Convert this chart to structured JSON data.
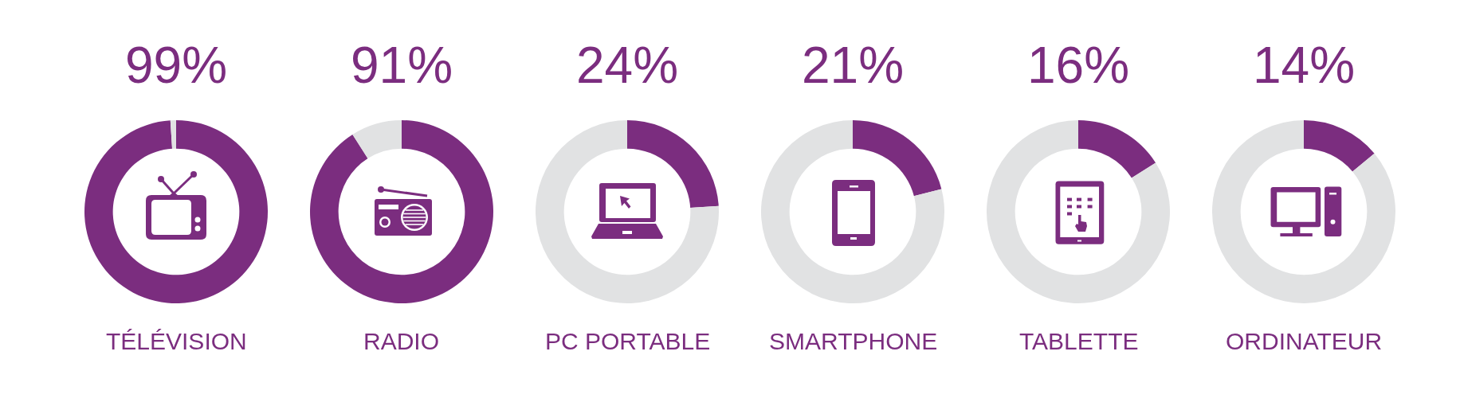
{
  "chart_data": [
    {
      "type": "donut",
      "title": "TÉLÉVISION",
      "categories": [
        null,
        null
      ],
      "values": [
        99,
        1
      ],
      "colors": [
        "#7b2d7f",
        "#e1e2e3"
      ],
      "value_labels": [
        "99%",
        null
      ]
    },
    {
      "type": "donut",
      "title": "RADIO",
      "categories": [
        null,
        null
      ],
      "values": [
        91,
        9
      ],
      "colors": [
        "#7b2d7f",
        "#e1e2e3"
      ],
      "value_labels": [
        "91%",
        null
      ]
    },
    {
      "type": "donut",
      "title": "PC PORTABLE",
      "categories": [
        null,
        null
      ],
      "values": [
        24,
        76
      ],
      "colors": [
        "#7b2d7f",
        "#e1e2e3"
      ],
      "value_labels": [
        "24%",
        null
      ]
    },
    {
      "type": "donut",
      "title": "SMARTPHONE",
      "categories": [
        null,
        null
      ],
      "values": [
        21,
        79
      ],
      "colors": [
        "#7b2d7f",
        "#e1e2e3"
      ],
      "value_labels": [
        "21%",
        null
      ]
    },
    {
      "type": "donut",
      "title": "TABLETTE",
      "categories": [
        null,
        null
      ],
      "values": [
        16,
        84
      ],
      "colors": [
        "#7b2d7f",
        "#e1e2e3"
      ],
      "value_labels": [
        "16%",
        null
      ]
    },
    {
      "type": "donut",
      "title": "ORDINATEUR",
      "categories": [
        null,
        null
      ],
      "values": [
        14,
        86
      ],
      "colors": [
        "#7b2d7f",
        "#e1e2e3"
      ],
      "value_labels": [
        "14%",
        null
      ]
    }
  ]
}
